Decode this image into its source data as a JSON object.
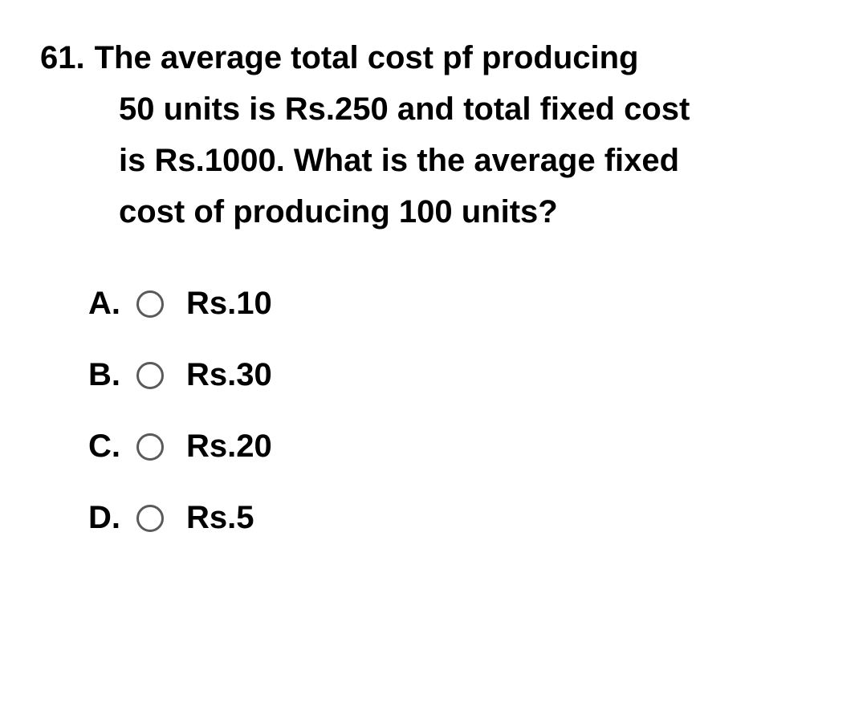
{
  "question": {
    "number": "61.",
    "line1": "The average total cost pf producing",
    "line2": "50 units is Rs.250 and total fixed cost",
    "line3": "is Rs.1000. What is the average fixed",
    "line4": "cost of producing 100 units?"
  },
  "options": [
    {
      "letter": "A.",
      "text": "Rs.10"
    },
    {
      "letter": "B.",
      "text": "Rs.30"
    },
    {
      "letter": "C.",
      "text": "Rs.20"
    },
    {
      "letter": "D.",
      "text": "Rs.5"
    }
  ],
  "colors": {
    "text": "#000000",
    "radio_border": "#5a5a5a",
    "background": "#ffffff"
  },
  "typography": {
    "font_family": "Arial, Helvetica, sans-serif",
    "question_fontsize": 40,
    "question_fontweight": "bold",
    "option_fontsize": 40,
    "option_fontweight": "bold"
  }
}
